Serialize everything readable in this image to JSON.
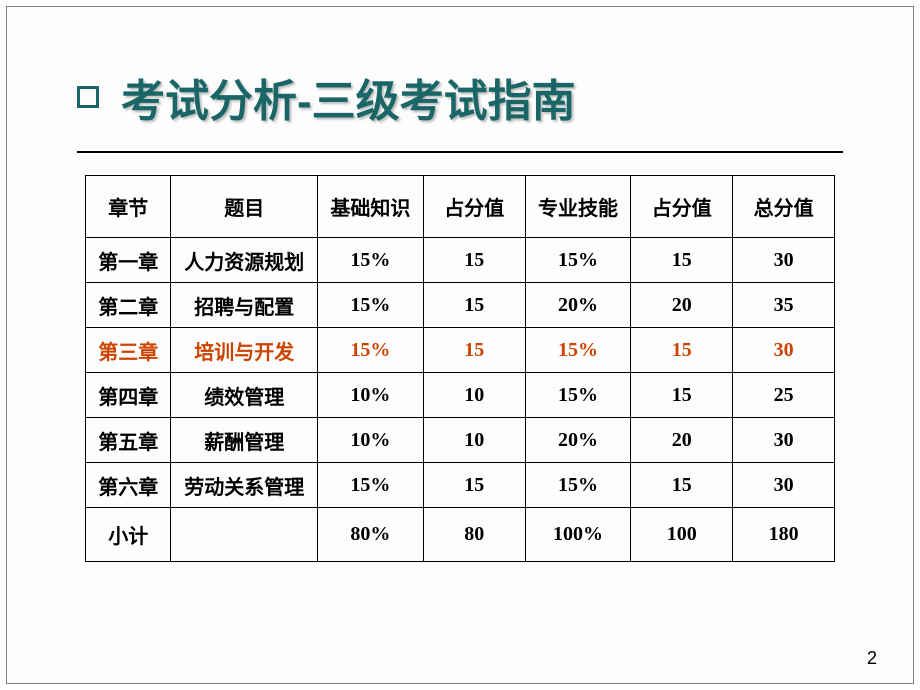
{
  "title": "考试分析-三级考试指南",
  "page_number": "2",
  "colors": {
    "title_color": "#1a6666",
    "highlight_color": "#cc4400",
    "text_color": "#000000",
    "border_color": "#000000",
    "background": "#ffffff"
  },
  "table": {
    "columns": [
      "章节",
      "题目",
      "基础知识",
      "占分值",
      "专业技能",
      "占分值",
      "总分值"
    ],
    "rows": [
      {
        "cells": [
          "第一章",
          "人力资源规划",
          "15%",
          "15",
          "15%",
          "15",
          "30"
        ],
        "highlight": false
      },
      {
        "cells": [
          "第二章",
          "招聘与配置",
          "15%",
          "15",
          "20%",
          "20",
          "35"
        ],
        "highlight": false
      },
      {
        "cells": [
          "第三章",
          "培训与开发",
          "15%",
          "15",
          "15%",
          "15",
          "30"
        ],
        "highlight": true
      },
      {
        "cells": [
          "第四章",
          "绩效管理",
          "10%",
          "10",
          "15%",
          "15",
          "25"
        ],
        "highlight": false
      },
      {
        "cells": [
          "第五章",
          "薪酬管理",
          "10%",
          "10",
          "20%",
          "20",
          "30"
        ],
        "highlight": false
      },
      {
        "cells": [
          "第六章",
          "劳动关系管理",
          "15%",
          "15",
          "15%",
          "15",
          "30"
        ],
        "highlight": false
      }
    ],
    "subtotal": {
      "label": "小计",
      "cells": [
        "小计",
        "",
        "80%",
        "80",
        "100%",
        "100",
        "180"
      ]
    }
  },
  "typography": {
    "title_fontsize": 44,
    "header_fontsize": 20,
    "cell_fontsize": 20
  }
}
